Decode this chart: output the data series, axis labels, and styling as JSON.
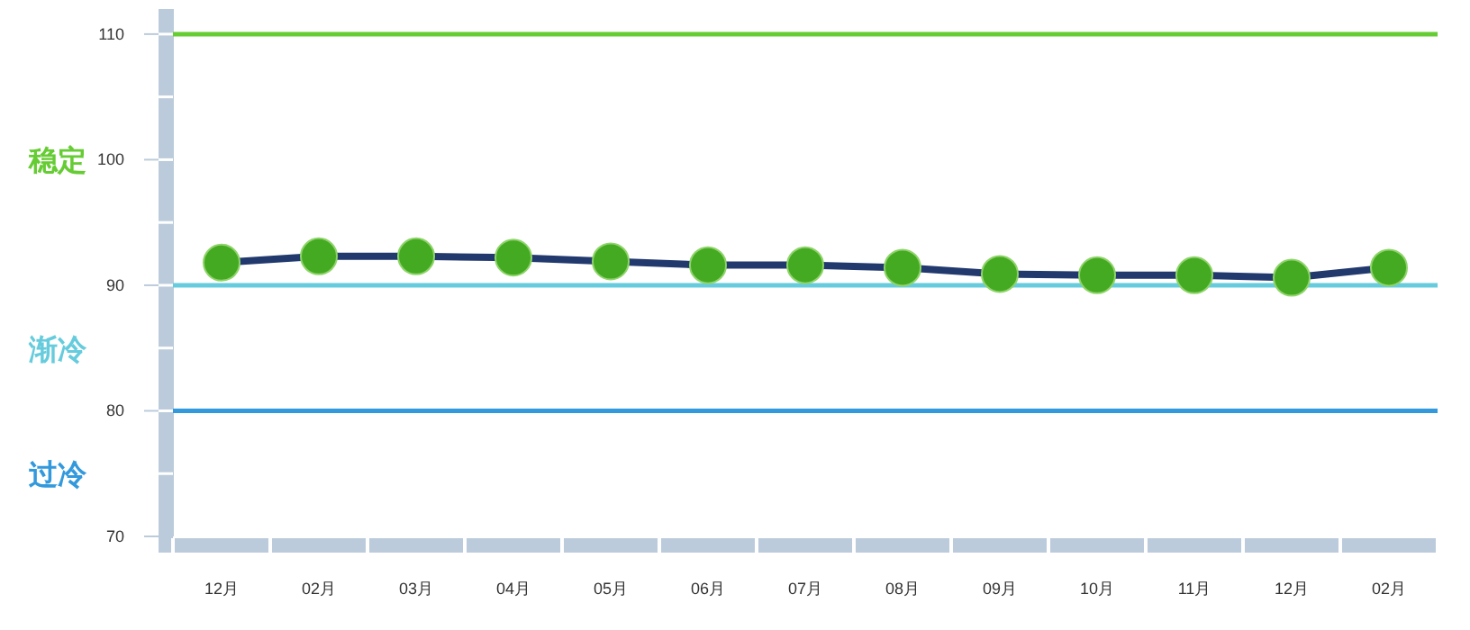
{
  "chart_data": {
    "type": "line",
    "categories": [
      "12月",
      "02月",
      "03月",
      "04月",
      "05月",
      "06月",
      "07月",
      "08月",
      "09月",
      "10月",
      "11月",
      "12月",
      "02月"
    ],
    "series": [
      {
        "color": "#44aa22",
        "values": [
          91.8,
          92.3,
          92.3,
          92.2,
          91.9,
          91.6,
          91.6,
          91.4,
          90.9,
          90.8,
          90.8,
          90.6,
          91.4
        ]
      }
    ],
    "ylim": [
      70,
      112
    ],
    "yticks": [
      70,
      80,
      90,
      100,
      110
    ],
    "marker": "circle",
    "grid": false,
    "ref_lines": [
      {
        "axis": "y",
        "value": 110,
        "color": "#66cc33"
      },
      {
        "axis": "y",
        "value": 90,
        "color": "#66ccdd"
      },
      {
        "axis": "y",
        "value": 80,
        "color": "#3399dd"
      }
    ],
    "annotations": [
      "稳定",
      "渐冷",
      "过冷"
    ]
  }
}
